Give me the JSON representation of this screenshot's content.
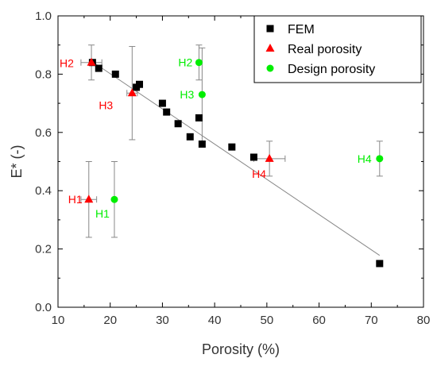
{
  "chart_data": {
    "type": "scatter",
    "title": "",
    "xlabel": "Porosity (%)",
    "ylabel": "E* (-)",
    "xlim": [
      10,
      80
    ],
    "ylim": [
      0.0,
      1.0
    ],
    "xticks": [
      10,
      20,
      30,
      40,
      50,
      60,
      70,
      80
    ],
    "yticks": [
      0.0,
      0.2,
      0.4,
      0.6,
      0.8,
      1.0
    ],
    "xtick_labels": [
      "10",
      "20",
      "30",
      "40",
      "50",
      "60",
      "70",
      "80"
    ],
    "ytick_labels": [
      "0.0",
      "0.2",
      "0.4",
      "0.6",
      "0.8",
      "1.0"
    ],
    "grid": false,
    "legend_position": "top-right",
    "series": [
      {
        "name": "FEM",
        "marker": "square",
        "color": "#000000",
        "points": [
          {
            "x": 16.6,
            "y": 0.84
          },
          {
            "x": 17.8,
            "y": 0.82
          },
          {
            "x": 21.0,
            "y": 0.8
          },
          {
            "x": 25.0,
            "y": 0.755
          },
          {
            "x": 25.6,
            "y": 0.765
          },
          {
            "x": 30.0,
            "y": 0.7
          },
          {
            "x": 30.8,
            "y": 0.67
          },
          {
            "x": 33.0,
            "y": 0.63
          },
          {
            "x": 35.3,
            "y": 0.585
          },
          {
            "x": 37.0,
            "y": 0.65
          },
          {
            "x": 37.6,
            "y": 0.56
          },
          {
            "x": 43.3,
            "y": 0.55
          },
          {
            "x": 47.5,
            "y": 0.515
          },
          {
            "x": 71.6,
            "y": 0.15
          }
        ]
      },
      {
        "name": "Real porosity",
        "marker": "triangle",
        "color": "#ff0000",
        "points": [
          {
            "x": 16.4,
            "y": 0.84,
            "label": "H2",
            "xerr": 2.0,
            "yerr": 0.06
          },
          {
            "x": 24.2,
            "y": 0.735,
            "label": "H3",
            "xerr": 1.0,
            "yerr": 0.16
          },
          {
            "x": 15.9,
            "y": 0.37,
            "label": "H1",
            "xerr": 1.5,
            "yerr": 0.13
          },
          {
            "x": 50.5,
            "y": 0.51,
            "label": "H4",
            "xerr": 3.0,
            "yerr": 0.06
          }
        ]
      },
      {
        "name": "Design porosity",
        "marker": "circle",
        "color": "#00ee00",
        "points": [
          {
            "x": 20.8,
            "y": 0.37,
            "label": "H1",
            "yerr": 0.13
          },
          {
            "x": 37.0,
            "y": 0.84,
            "label": "H2",
            "yerr": 0.06
          },
          {
            "x": 37.6,
            "y": 0.73,
            "label": "H3",
            "yerr": 0.16
          },
          {
            "x": 71.6,
            "y": 0.51,
            "label": "H4",
            "yerr": 0.06
          }
        ]
      }
    ],
    "trendline": {
      "color": "#888888",
      "x": [
        16.4,
        71.6
      ],
      "y": [
        0.845,
        0.178
      ]
    }
  }
}
